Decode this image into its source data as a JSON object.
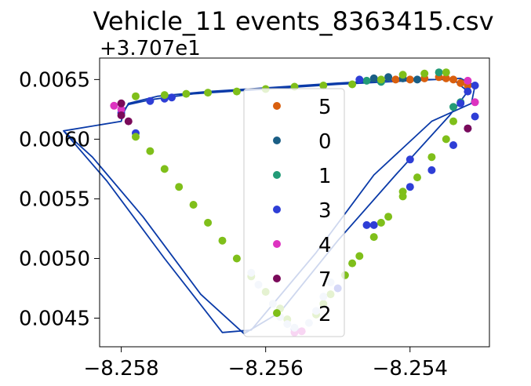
{
  "chart_data": {
    "type": "scatter",
    "title": "Vehicle_11 events_8363415.csv",
    "y_offset_label": "+3.707e1",
    "xlabel": "",
    "ylabel": "",
    "xlim": [
      -8.2583,
      -8.2529
    ],
    "ylim": [
      0.00426,
      0.00668
    ],
    "x_ticks": [
      -8.258,
      -8.256,
      -8.254
    ],
    "x_tick_labels": [
      "−8.258",
      "−8.256",
      "−8.254"
    ],
    "y_ticks": [
      0.0045,
      0.005,
      0.0055,
      0.006,
      0.0065
    ],
    "y_tick_labels": [
      "0.0045",
      "0.0050",
      "0.0055",
      "0.0060",
      "0.0065"
    ],
    "legend_position": "center",
    "track_line": {
      "color": "#0a3aa8",
      "points": [
        [
          -8.258,
          0.00622
        ],
        [
          -8.2579,
          0.00629
        ],
        [
          -8.2576,
          0.00633
        ],
        [
          -8.257,
          0.00638
        ],
        [
          -8.256,
          0.00642
        ],
        [
          -8.255,
          0.00646
        ],
        [
          -8.254,
          0.00649
        ],
        [
          -8.2533,
          0.00651
        ],
        [
          -8.2531,
          0.00645
        ],
        [
          -8.25315,
          0.0063
        ],
        [
          -8.2537,
          0.00615
        ],
        [
          -8.2545,
          0.0057
        ],
        [
          -8.2553,
          0.00505
        ],
        [
          -8.2562,
          0.0044
        ],
        [
          -8.2566,
          0.00438
        ],
        [
          -8.2574,
          0.005
        ],
        [
          -8.2582,
          0.00565
        ],
        [
          -8.2588,
          0.00607
        ],
        [
          -8.258,
          0.00615
        ],
        [
          -8.25797,
          0.00622
        ],
        [
          -8.2579,
          0.0063
        ],
        [
          -8.2575,
          0.00636
        ],
        [
          -8.2568,
          0.0064
        ],
        [
          -8.256,
          0.00643
        ],
        [
          -8.255,
          0.00647
        ],
        [
          -8.2541,
          0.0065
        ],
        [
          -8.2534,
          0.0065
        ],
        [
          -8.2532,
          0.0064
        ],
        [
          -8.25345,
          0.0062
        ],
        [
          -8.2542,
          0.0057
        ],
        [
          -8.255,
          0.00515
        ],
        [
          -8.2558,
          0.00455
        ],
        [
          -8.2563,
          0.00437
        ],
        [
          -8.2569,
          0.0047
        ],
        [
          -8.2577,
          0.00535
        ],
        [
          -8.2584,
          0.00585
        ],
        [
          -8.2588,
          0.00607
        ]
      ]
    },
    "series": [
      {
        "name": "5",
        "color": "#d95f0e",
        "points": [
          [
            -8.2542,
            0.0065
          ],
          [
            -8.254,
            0.0065
          ],
          [
            -8.2538,
            0.00651
          ],
          [
            -8.2536,
            0.00652
          ],
          [
            -8.2535,
            0.00651
          ],
          [
            -8.2534,
            0.0065
          ],
          [
            -8.2533,
            0.00647
          ],
          [
            -8.2532,
            0.00645
          ]
        ]
      },
      {
        "name": "0",
        "color": "#1a5e85",
        "points": [
          [
            -8.2545,
            0.00651
          ],
          [
            -8.2543,
            0.00652
          ],
          [
            -8.2541,
            0.00651
          ],
          [
            -8.2539,
            0.0065
          ]
        ]
      },
      {
        "name": "1",
        "color": "#229b77",
        "points": [
          [
            -8.2546,
            0.00649
          ],
          [
            -8.2544,
            0.00648
          ],
          [
            -8.2536,
            0.00656
          ],
          [
            -8.2533,
            0.00631
          ],
          [
            -8.2534,
            0.00627
          ]
        ]
      },
      {
        "name": "3",
        "color": "#2e3ed6",
        "points": [
          [
            -8.258,
            0.00622
          ],
          [
            -8.2578,
            0.00605
          ],
          [
            -8.2576,
            0.00632
          ],
          [
            -8.2574,
            0.00634
          ],
          [
            -8.2573,
            0.00635
          ],
          [
            -8.2547,
            0.0065
          ],
          [
            -8.2531,
            0.00645
          ],
          [
            -8.2531,
            0.00619
          ],
          [
            -8.2532,
            0.00609
          ],
          [
            -8.2534,
            0.00595
          ],
          [
            -8.2537,
            0.00574
          ],
          [
            -8.254,
            0.0056
          ],
          [
            -8.2545,
            0.00528
          ],
          [
            -8.255,
            0.00475
          ],
          [
            -8.2556,
            0.00441
          ],
          [
            -8.2546,
            0.00528
          ],
          [
            -8.254,
            0.00583
          ],
          [
            -8.2533,
            0.0063
          ],
          [
            -8.2532,
            0.0064
          ]
        ]
      },
      {
        "name": "4",
        "color": "#dd33c0",
        "points": [
          [
            -8.258,
            0.00625
          ],
          [
            -8.2581,
            0.00628
          ],
          [
            -8.2556,
            0.00438
          ],
          [
            -8.2555,
            0.00439
          ],
          [
            -8.2531,
            0.00631
          ],
          [
            -8.2532,
            0.00649
          ]
        ]
      },
      {
        "name": "7",
        "color": "#7a0a5a",
        "points": [
          [
            -8.258,
            0.0062
          ],
          [
            -8.258,
            0.0063
          ],
          [
            -8.2579,
            0.00615
          ],
          [
            -8.2532,
            0.00609
          ]
        ]
      },
      {
        "name": "2",
        "color": "#7fbf1a",
        "points": [
          [
            -8.2578,
            0.00636
          ],
          [
            -8.2574,
            0.00637
          ],
          [
            -8.2571,
            0.00638
          ],
          [
            -8.2568,
            0.00639
          ],
          [
            -8.2564,
            0.0064
          ],
          [
            -8.256,
            0.00642
          ],
          [
            -8.2556,
            0.00644
          ],
          [
            -8.2552,
            0.00645
          ],
          [
            -8.2548,
            0.00646
          ],
          [
            -8.2544,
            0.0065
          ],
          [
            -8.2541,
            0.00654
          ],
          [
            -8.2538,
            0.00655
          ],
          [
            -8.2535,
            0.00656
          ],
          [
            -8.2578,
            0.00602
          ],
          [
            -8.2576,
            0.0059
          ],
          [
            -8.2574,
            0.00575
          ],
          [
            -8.2572,
            0.0056
          ],
          [
            -8.257,
            0.00545
          ],
          [
            -8.2568,
            0.0053
          ],
          [
            -8.2566,
            0.00515
          ],
          [
            -8.2564,
            0.005
          ],
          [
            -8.2562,
            0.00485
          ],
          [
            -8.256,
            0.00472
          ],
          [
            -8.2558,
            0.00458
          ],
          [
            -8.2557,
            0.00449
          ],
          [
            -8.2553,
            0.00453
          ],
          [
            -8.2551,
            0.0047
          ],
          [
            -8.2549,
            0.00486
          ],
          [
            -8.2547,
            0.00502
          ],
          [
            -8.2545,
            0.00518
          ],
          [
            -8.2543,
            0.00535
          ],
          [
            -8.2541,
            0.00552
          ],
          [
            -8.2539,
            0.00568
          ],
          [
            -8.2537,
            0.00585
          ],
          [
            -8.2535,
            0.006
          ],
          [
            -8.2534,
            0.00615
          ],
          [
            -8.2552,
            0.00462
          ],
          [
            -8.2548,
            0.00496
          ],
          [
            -8.2544,
            0.0053
          ],
          [
            -8.2541,
            0.00556
          ]
        ]
      },
      {
        "name": "",
        "color": "#c8d8f0",
        "points": [
          [
            -8.2562,
            0.00488
          ],
          [
            -8.2561,
            0.00478
          ],
          [
            -8.2559,
            0.00462
          ],
          [
            -8.2558,
            0.00451
          ],
          [
            -8.2557,
            0.00445
          ],
          [
            -8.2556,
            0.00442
          ],
          [
            -8.2554,
            0.00446
          ],
          [
            -8.2553,
            0.00456
          ],
          [
            -8.2552,
            0.00468
          ],
          [
            -8.2551,
            0.0048
          ]
        ]
      }
    ]
  }
}
